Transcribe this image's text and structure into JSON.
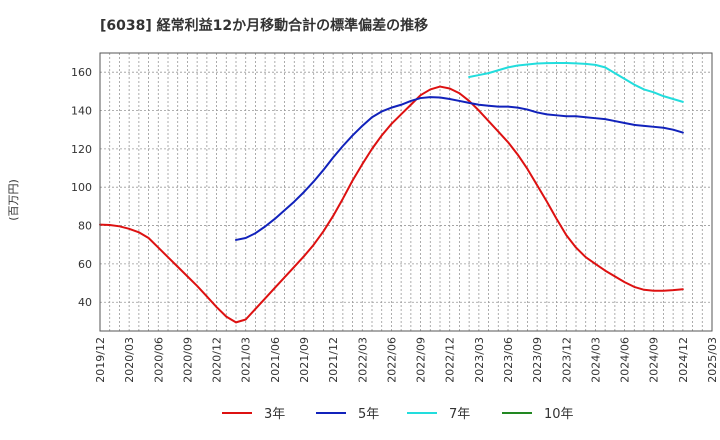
{
  "chart_data": {
    "type": "line",
    "title": "[6038]  経常利益12か月移動合計の標準偏差の推移",
    "ylabel": "(百万円)",
    "xlabel": "",
    "ylim": [
      25,
      170
    ],
    "yticks": [
      40,
      60,
      80,
      100,
      120,
      140,
      160
    ],
    "x_ticks": [
      "2019/12",
      "2020/03",
      "2020/06",
      "2020/09",
      "2020/12",
      "2021/03",
      "2021/06",
      "2021/09",
      "2021/12",
      "2022/03",
      "2022/06",
      "2022/09",
      "2022/12",
      "2023/03",
      "2023/06",
      "2023/09",
      "2023/12",
      "2024/03",
      "2024/06",
      "2024/09",
      "2024/12",
      "2025/03"
    ],
    "grid": true,
    "legend_position": "bottom",
    "series": [
      {
        "name": "3年",
        "color": "#dd1111",
        "points": [
          [
            "2019/12",
            80.5
          ],
          [
            "2020/01",
            80.3
          ],
          [
            "2020/02",
            79.6
          ],
          [
            "2020/03",
            78.3
          ],
          [
            "2020/04",
            76.5
          ],
          [
            "2020/05",
            73.5
          ],
          [
            "2020/06",
            68.5
          ],
          [
            "2020/07",
            63.5
          ],
          [
            "2020/08",
            58.5
          ],
          [
            "2020/09",
            53.5
          ],
          [
            "2020/10",
            48.5
          ],
          [
            "2020/11",
            43.0
          ],
          [
            "2020/12",
            37.5
          ],
          [
            "2021/01",
            32.5
          ],
          [
            "2021/02",
            29.5
          ],
          [
            "2021/03",
            31.0
          ],
          [
            "2021/04",
            36.5
          ],
          [
            "2021/05",
            42.0
          ],
          [
            "2021/06",
            47.5
          ],
          [
            "2021/07",
            53.0
          ],
          [
            "2021/08",
            58.5
          ],
          [
            "2021/09",
            64.0
          ],
          [
            "2021/10",
            70.0
          ],
          [
            "2021/11",
            77.0
          ],
          [
            "2021/12",
            85.0
          ],
          [
            "2022/01",
            94.0
          ],
          [
            "2022/02",
            103.5
          ],
          [
            "2022/03",
            112.0
          ],
          [
            "2022/04",
            120.0
          ],
          [
            "2022/05",
            127.0
          ],
          [
            "2022/06",
            133.0
          ],
          [
            "2022/07",
            138.0
          ],
          [
            "2022/08",
            143.0
          ],
          [
            "2022/09",
            148.0
          ],
          [
            "2022/10",
            151.0
          ],
          [
            "2022/11",
            152.5
          ],
          [
            "2022/12",
            151.5
          ],
          [
            "2023/01",
            149.0
          ],
          [
            "2023/02",
            145.0
          ],
          [
            "2023/03",
            140.0
          ],
          [
            "2023/04",
            134.5
          ],
          [
            "2023/05",
            129.0
          ],
          [
            "2023/06",
            123.5
          ],
          [
            "2023/07",
            117.0
          ],
          [
            "2023/08",
            109.5
          ],
          [
            "2023/09",
            101.0
          ],
          [
            "2023/10",
            92.5
          ],
          [
            "2023/11",
            83.5
          ],
          [
            "2023/12",
            75.0
          ],
          [
            "2024/01",
            68.5
          ],
          [
            "2024/02",
            63.5
          ],
          [
            "2024/03",
            60.0
          ],
          [
            "2024/04",
            56.5
          ],
          [
            "2024/05",
            53.5
          ],
          [
            "2024/06",
            50.5
          ],
          [
            "2024/07",
            48.0
          ],
          [
            "2024/08",
            46.5
          ],
          [
            "2024/09",
            46.0
          ],
          [
            "2024/10",
            46.0
          ],
          [
            "2024/11",
            46.3
          ],
          [
            "2024/12",
            46.8
          ]
        ]
      },
      {
        "name": "5年",
        "color": "#1122bb",
        "points": [
          [
            "2021/02",
            72.5
          ],
          [
            "2021/03",
            73.5
          ],
          [
            "2021/04",
            76.0
          ],
          [
            "2021/05",
            79.5
          ],
          [
            "2021/06",
            83.5
          ],
          [
            "2021/07",
            88.0
          ],
          [
            "2021/08",
            92.5
          ],
          [
            "2021/09",
            97.5
          ],
          [
            "2021/10",
            103.0
          ],
          [
            "2021/11",
            109.0
          ],
          [
            "2021/12",
            115.5
          ],
          [
            "2022/01",
            121.5
          ],
          [
            "2022/02",
            127.0
          ],
          [
            "2022/03",
            132.0
          ],
          [
            "2022/04",
            136.5
          ],
          [
            "2022/05",
            139.5
          ],
          [
            "2022/06",
            141.5
          ],
          [
            "2022/07",
            143.0
          ],
          [
            "2022/08",
            145.0
          ],
          [
            "2022/09",
            146.5
          ],
          [
            "2022/10",
            147.0
          ],
          [
            "2022/11",
            146.8
          ],
          [
            "2022/12",
            146.0
          ],
          [
            "2023/01",
            145.0
          ],
          [
            "2023/02",
            144.0
          ],
          [
            "2023/03",
            143.0
          ],
          [
            "2023/04",
            142.5
          ],
          [
            "2023/05",
            142.0
          ],
          [
            "2023/06",
            142.0
          ],
          [
            "2023/07",
            141.5
          ],
          [
            "2023/08",
            140.5
          ],
          [
            "2023/09",
            139.0
          ],
          [
            "2023/10",
            138.0
          ],
          [
            "2023/11",
            137.5
          ],
          [
            "2023/12",
            137.0
          ],
          [
            "2024/01",
            137.0
          ],
          [
            "2024/02",
            136.5
          ],
          [
            "2024/03",
            136.0
          ],
          [
            "2024/04",
            135.5
          ],
          [
            "2024/05",
            134.5
          ],
          [
            "2024/06",
            133.5
          ],
          [
            "2024/07",
            132.5
          ],
          [
            "2024/08",
            132.0
          ],
          [
            "2024/09",
            131.5
          ],
          [
            "2024/10",
            131.0
          ],
          [
            "2024/11",
            130.0
          ],
          [
            "2024/12",
            128.5
          ]
        ]
      },
      {
        "name": "7年",
        "color": "#22dddd",
        "points": [
          [
            "2023/02",
            157.5
          ],
          [
            "2023/03",
            158.5
          ],
          [
            "2023/04",
            159.5
          ],
          [
            "2023/05",
            161.0
          ],
          [
            "2023/06",
            162.5
          ],
          [
            "2023/07",
            163.5
          ],
          [
            "2023/08",
            164.0
          ],
          [
            "2023/09",
            164.5
          ],
          [
            "2023/10",
            164.7
          ],
          [
            "2023/11",
            164.8
          ],
          [
            "2023/12",
            164.8
          ],
          [
            "2024/01",
            164.6
          ],
          [
            "2024/02",
            164.3
          ],
          [
            "2024/03",
            163.8
          ],
          [
            "2024/04",
            162.5
          ],
          [
            "2024/05",
            159.5
          ],
          [
            "2024/06",
            156.5
          ],
          [
            "2024/07",
            153.5
          ],
          [
            "2024/08",
            151.0
          ],
          [
            "2024/09",
            149.5
          ],
          [
            "2024/10",
            147.5
          ],
          [
            "2024/11",
            146.0
          ],
          [
            "2024/12",
            144.5
          ]
        ]
      },
      {
        "name": "10年",
        "color": "#228822",
        "points": []
      }
    ]
  }
}
